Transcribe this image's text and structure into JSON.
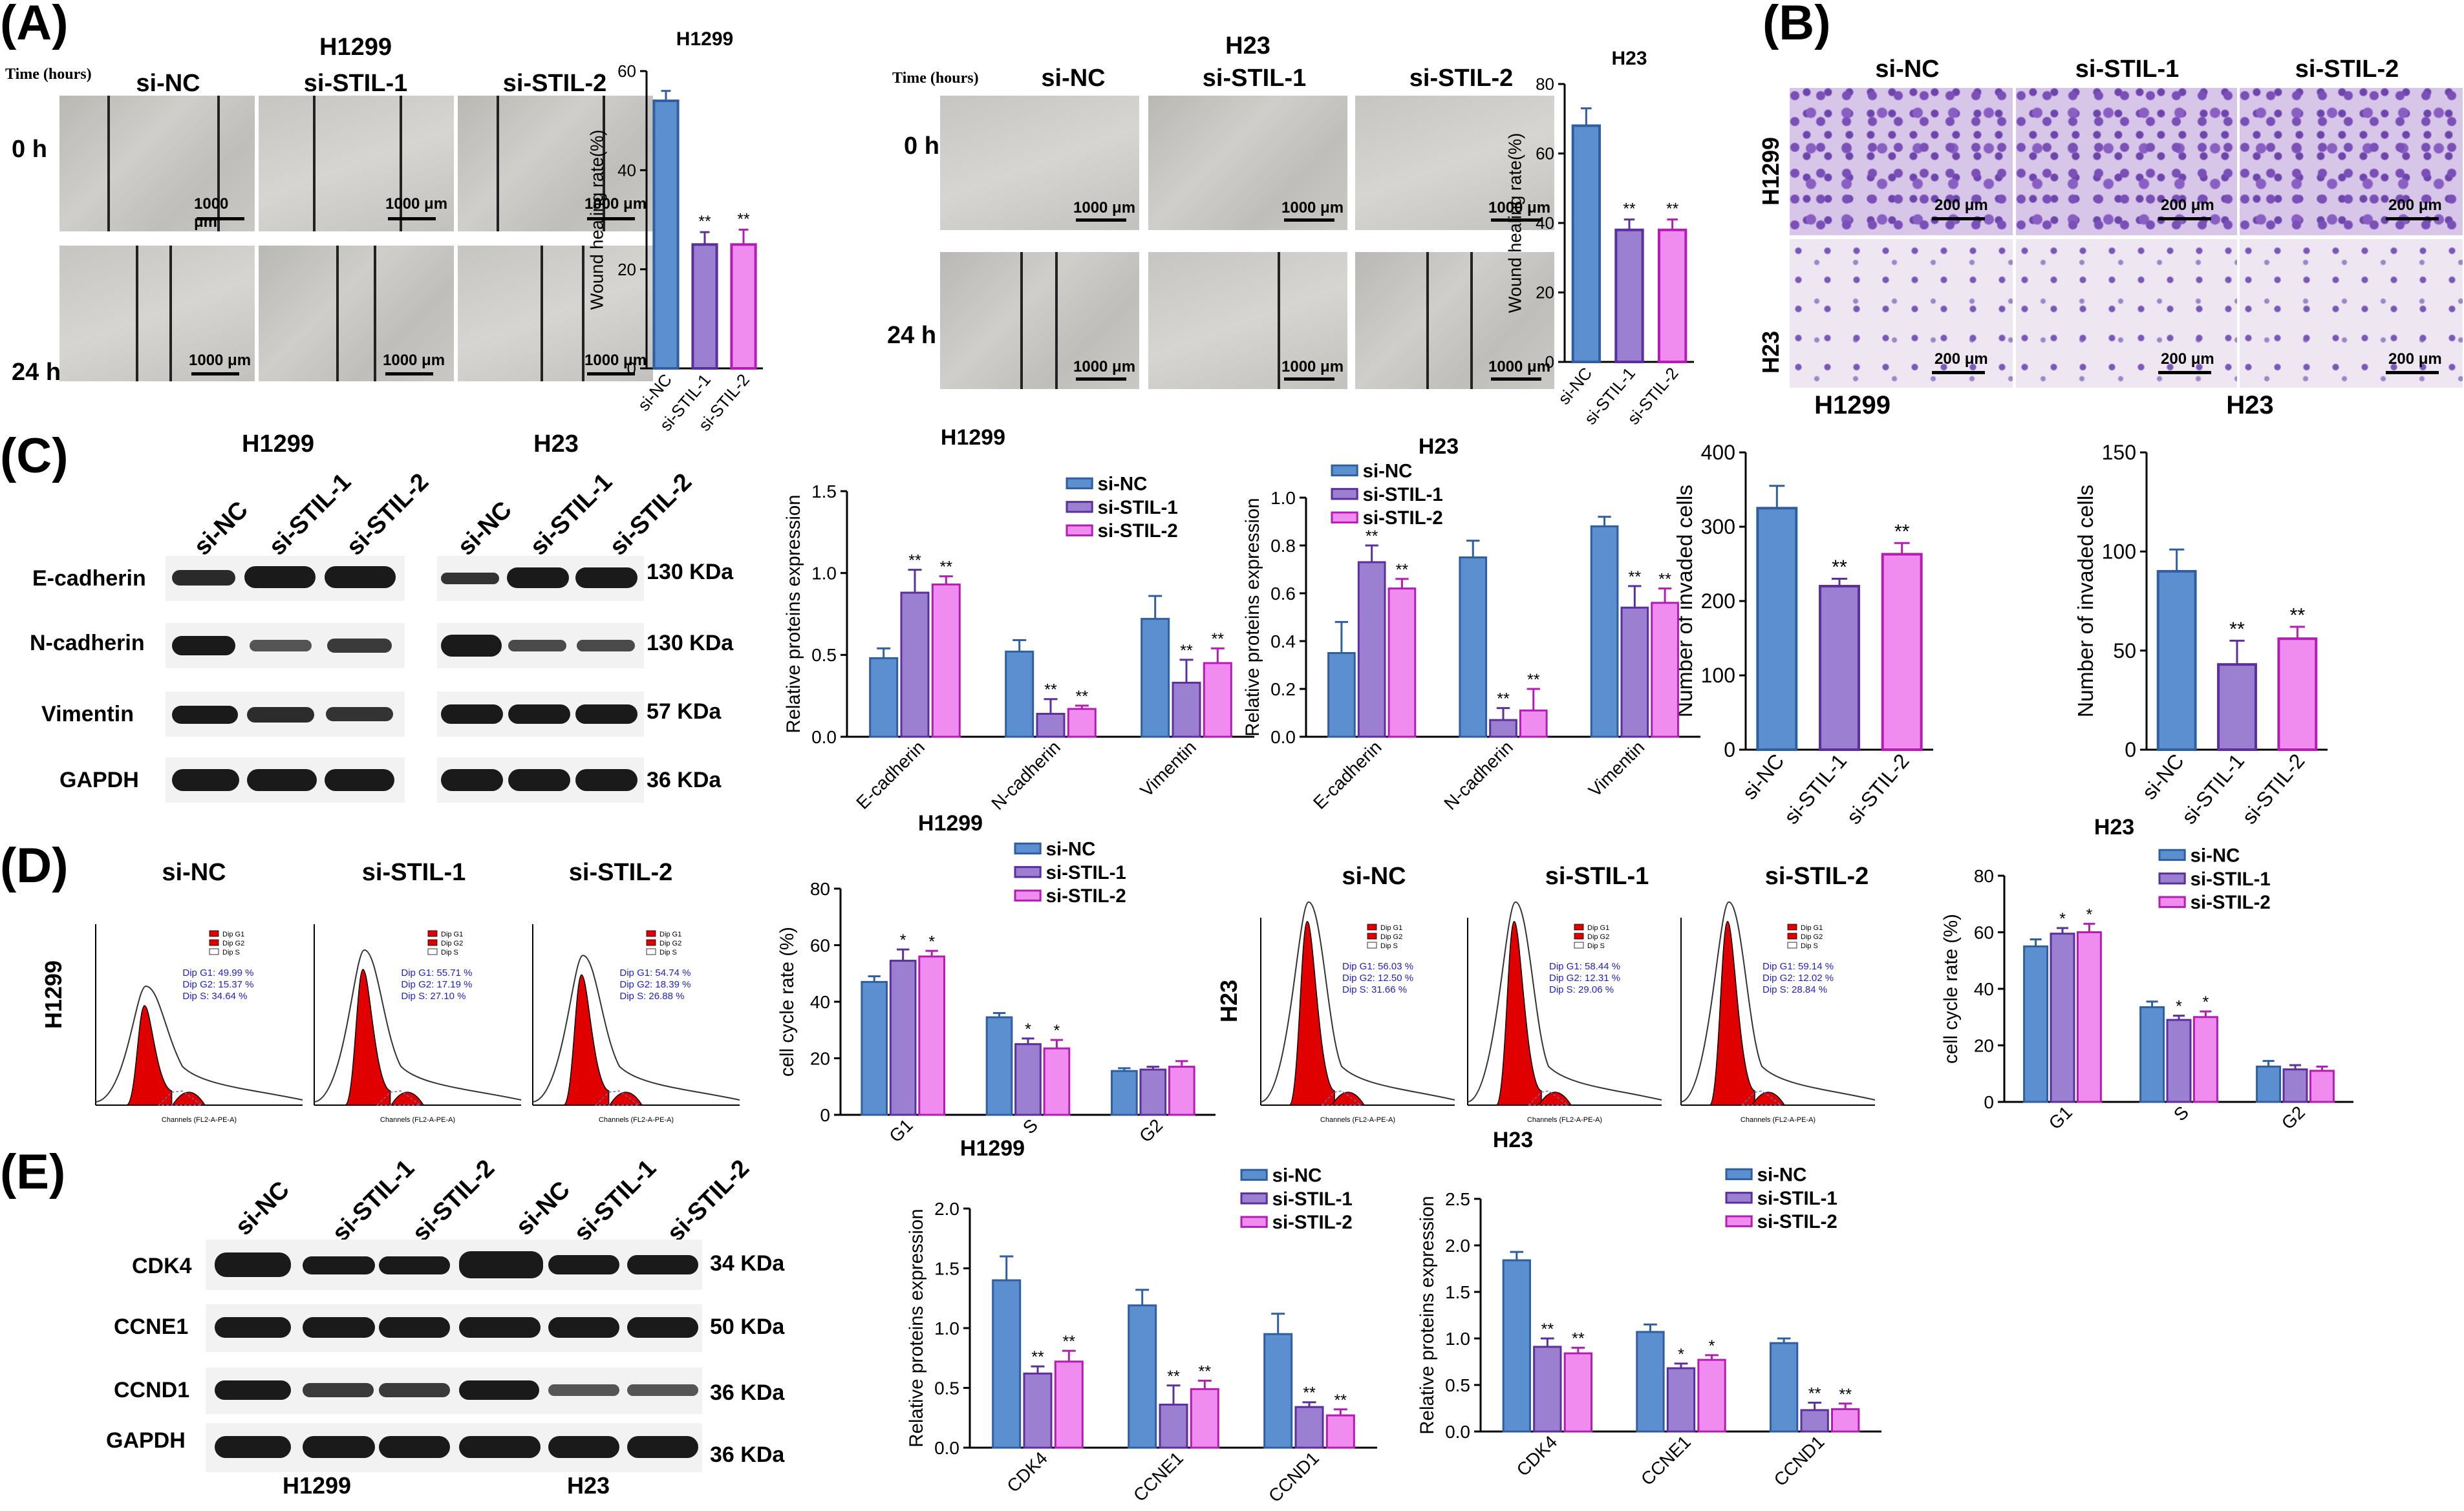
{
  "panels": {
    "A": "(A)",
    "B": "(B)",
    "C": "(C)",
    "D": "(D)",
    "E": "(E)"
  },
  "panel_a": {
    "time_label": "Time (hours)",
    "cell_h1299": "H1299",
    "cell_h23": "H23",
    "groups": [
      "si-NC",
      "si-STIL-1",
      "si-STIL-2"
    ],
    "times": [
      "0 h",
      "24 h"
    ],
    "scale_bar": "1000 μm"
  },
  "panel_b": {
    "groups": [
      "si-NC",
      "si-STIL-1",
      "si-STIL-2"
    ],
    "rows": [
      "H1299",
      "H23"
    ],
    "scale_bar": "200 μm"
  },
  "panel_c": {
    "blot_cells": [
      "H1299",
      "H23"
    ],
    "blot_groups": [
      "si-NC",
      "si-STIL-1",
      "si-STIL-2"
    ],
    "proteins": [
      "E-cadherin",
      "N-cadherin",
      "Vimentin",
      "GAPDH"
    ],
    "sizes": [
      "130 KDa",
      "130 KDa",
      "57 KDa",
      "36 KDa"
    ]
  },
  "panel_d": {
    "groups": [
      "si-NC",
      "si-STIL-1",
      "si-STIL-2"
    ],
    "cells": [
      "H1299",
      "H23"
    ],
    "legend": [
      "Dip G1",
      "Dip G2",
      "Dip S"
    ],
    "x_axis": "Channels (FL2-A-PE-A)",
    "stats_h1299": [
      [
        "Dip G1: 49.99 %",
        "Dip G2: 15.37 %",
        "Dip S: 34.64 %"
      ],
      [
        "Dip G1: 55.71 %",
        "Dip G2: 17.19 %",
        "Dip S: 27.10 %"
      ],
      [
        "Dip G1: 54.74 %",
        "Dip G2: 18.39 %",
        "Dip S: 26.88 %"
      ]
    ],
    "stats_h23": [
      [
        "Dip G1: 56.03 %",
        "Dip G2: 12.50 %",
        "Dip S: 31.66 %"
      ],
      [
        "Dip G1: 58.44 %",
        "Dip G2: 12.31 %",
        "Dip S: 29.06 %"
      ],
      [
        "Dip G1: 59.14 %",
        "Dip G2: 12.02 %",
        "Dip S: 28.84 %"
      ]
    ]
  },
  "panel_e": {
    "groups": [
      "si-NC",
      "si-STIL-1",
      "si-STIL-2",
      "si-NC",
      "si-STIL-1",
      "si-STIL-2"
    ],
    "proteins": [
      "CDK4",
      "CCNE1",
      "CCND1",
      "GAPDH"
    ],
    "sizes": [
      "34 KDa",
      "50 KDa",
      "36 KDa",
      "36 KDa"
    ],
    "cells": [
      "H1299",
      "H23"
    ]
  },
  "colors": {
    "si_nc": "#5b8fd0",
    "si_stil_1": "#9b7fd0",
    "si_stil_2": "#f08cf0",
    "si_nc_edge": "#2f5f9e",
    "si_stil_1_edge": "#5c2f9e",
    "si_stil_2_edge": "#b41cb4",
    "hist_fill": "#e00000",
    "dot_stain": "#7a4fb8"
  },
  "chart_data": [
    {
      "id": "wound_h1299",
      "type": "bar",
      "title": "H1299",
      "ylabel": "Wound healing rate(%)",
      "categories": [
        "si-NC",
        "si-STIL-1",
        "si-STIL-2"
      ],
      "values": [
        54,
        25,
        25
      ],
      "errors": [
        2,
        2.5,
        3
      ],
      "sig": [
        "",
        "**",
        "**"
      ],
      "ylim": [
        0,
        60
      ],
      "yticks": [
        0,
        20,
        40,
        60
      ]
    },
    {
      "id": "wound_h23",
      "type": "bar",
      "title": "H23",
      "ylabel": "Wound healing rate(%)",
      "categories": [
        "si-NC",
        "si-STIL-1",
        "si-STIL-2"
      ],
      "values": [
        68,
        38,
        38
      ],
      "errors": [
        5,
        3,
        3
      ],
      "sig": [
        "",
        "**",
        "**"
      ],
      "ylim": [
        0,
        80
      ],
      "yticks": [
        0,
        20,
        40,
        60,
        80
      ]
    },
    {
      "id": "invaded_h1299",
      "type": "bar",
      "title": "H1299",
      "ylabel": "Number of invaded cells",
      "categories": [
        "si-NC",
        "si-STIL-1",
        "si-STIL-2"
      ],
      "values": [
        325,
        220,
        263
      ],
      "errors": [
        30,
        10,
        15
      ],
      "sig": [
        "",
        "**",
        "**"
      ],
      "ylim": [
        0,
        400
      ],
      "yticks": [
        0,
        100,
        200,
        300,
        400
      ]
    },
    {
      "id": "invaded_h23",
      "type": "bar",
      "title": "H23",
      "ylabel": "Number of invaded cells",
      "categories": [
        "si-NC",
        "si-STIL-1",
        "si-STIL-2"
      ],
      "values": [
        90,
        43,
        56
      ],
      "errors": [
        11,
        12,
        6
      ],
      "sig": [
        "",
        "**",
        "**"
      ],
      "ylim": [
        0,
        150
      ],
      "yticks": [
        0,
        50,
        100,
        150
      ]
    },
    {
      "id": "emt_h1299",
      "type": "bar",
      "title": "H1299",
      "ylabel": "Relative proteins expression",
      "categories": [
        "E-cadherin",
        "N-cadherin",
        "Vimentin"
      ],
      "series": [
        {
          "name": "si-NC",
          "values": [
            0.48,
            0.52,
            0.72
          ],
          "errors": [
            0.06,
            0.07,
            0.14
          ],
          "sig": [
            "",
            "",
            ""
          ]
        },
        {
          "name": "si-STIL-1",
          "values": [
            0.88,
            0.14,
            0.33
          ],
          "errors": [
            0.14,
            0.09,
            0.14
          ],
          "sig": [
            "**",
            "**",
            "**"
          ]
        },
        {
          "name": "si-STIL-2",
          "values": [
            0.93,
            0.17,
            0.45
          ],
          "errors": [
            0.05,
            0.02,
            0.09
          ],
          "sig": [
            "**",
            "**",
            "**"
          ]
        }
      ],
      "ylim": [
        0,
        1.5
      ],
      "yticks": [
        "0.0",
        "0.5",
        "1.0",
        "1.5"
      ]
    },
    {
      "id": "emt_h23",
      "type": "bar",
      "title": "H23",
      "ylabel": "Relative proteins expression",
      "categories": [
        "E-cadherin",
        "N-cadherin",
        "Vimentin"
      ],
      "series": [
        {
          "name": "si-NC",
          "values": [
            0.35,
            0.75,
            0.88
          ],
          "errors": [
            0.13,
            0.07,
            0.04
          ],
          "sig": [
            "",
            "",
            ""
          ]
        },
        {
          "name": "si-STIL-1",
          "values": [
            0.73,
            0.07,
            0.54
          ],
          "errors": [
            0.07,
            0.05,
            0.09
          ],
          "sig": [
            "**",
            "**",
            "**"
          ]
        },
        {
          "name": "si-STIL-2",
          "values": [
            0.62,
            0.11,
            0.56
          ],
          "errors": [
            0.04,
            0.09,
            0.06
          ],
          "sig": [
            "**",
            "**",
            "**"
          ]
        }
      ],
      "ylim": [
        0,
        1.0
      ],
      "yticks": [
        "0.0",
        "0.2",
        "0.4",
        "0.6",
        "0.8",
        "1.0"
      ]
    },
    {
      "id": "cycle_h1299",
      "type": "bar",
      "title": "H1299",
      "ylabel": "cell cycle rate (%)",
      "categories": [
        "G1",
        "S",
        "G2"
      ],
      "series": [
        {
          "name": "si-NC",
          "values": [
            47,
            34.5,
            15.5
          ],
          "errors": [
            2,
            1.5,
            1
          ],
          "sig": [
            "",
            "",
            ""
          ]
        },
        {
          "name": "si-STIL-1",
          "values": [
            54.5,
            25,
            16
          ],
          "errors": [
            4,
            2,
            1
          ],
          "sig": [
            "*",
            "*",
            ""
          ]
        },
        {
          "name": "si-STIL-2",
          "values": [
            56,
            23.5,
            17
          ],
          "errors": [
            2,
            3,
            2
          ],
          "sig": [
            "*",
            "*",
            ""
          ]
        }
      ],
      "ylim": [
        0,
        80
      ],
      "yticks": [
        0,
        20,
        40,
        60,
        80
      ]
    },
    {
      "id": "cycle_h23",
      "type": "bar",
      "title": "H23",
      "ylabel": "cell cycle rate (%)",
      "categories": [
        "G1",
        "S",
        "G2"
      ],
      "series": [
        {
          "name": "si-NC",
          "values": [
            55,
            33.5,
            12.5
          ],
          "errors": [
            2.5,
            2,
            2
          ],
          "sig": [
            "",
            "",
            ""
          ]
        },
        {
          "name": "si-STIL-1",
          "values": [
            59.5,
            29,
            11.5
          ],
          "errors": [
            2,
            1.5,
            1.5
          ],
          "sig": [
            "*",
            "*",
            ""
          ]
        },
        {
          "name": "si-STIL-2",
          "values": [
            60,
            30,
            11
          ],
          "errors": [
            3,
            2,
            1.5
          ],
          "sig": [
            "*",
            "*",
            ""
          ]
        }
      ],
      "ylim": [
        0,
        80
      ],
      "yticks": [
        0,
        20,
        40,
        60,
        80
      ]
    },
    {
      "id": "cyclin_h1299",
      "type": "bar",
      "title": "H1299",
      "ylabel": "Relative proteins expression",
      "categories": [
        "CDK4",
        "CCNE1",
        "CCND1"
      ],
      "series": [
        {
          "name": "si-NC",
          "values": [
            1.4,
            1.19,
            0.95
          ],
          "errors": [
            0.2,
            0.13,
            0.17
          ],
          "sig": [
            "",
            "",
            ""
          ]
        },
        {
          "name": "si-STIL-1",
          "values": [
            0.62,
            0.36,
            0.34
          ],
          "errors": [
            0.06,
            0.16,
            0.04
          ],
          "sig": [
            "**",
            "**",
            "**"
          ]
        },
        {
          "name": "si-STIL-2",
          "values": [
            0.72,
            0.49,
            0.27
          ],
          "errors": [
            0.09,
            0.07,
            0.05
          ],
          "sig": [
            "**",
            "**",
            "**"
          ]
        }
      ],
      "ylim": [
        0,
        2.0
      ],
      "yticks": [
        "0.0",
        "0.5",
        "1.0",
        "1.5",
        "2.0"
      ]
    },
    {
      "id": "cyclin_h23",
      "type": "bar",
      "title": "H23",
      "ylabel": "Relative proteins expression",
      "categories": [
        "CDK4",
        "CCNE1",
        "CCND1"
      ],
      "series": [
        {
          "name": "si-NC",
          "values": [
            1.84,
            1.07,
            0.95
          ],
          "errors": [
            0.09,
            0.08,
            0.05
          ],
          "sig": [
            "",
            "",
            ""
          ]
        },
        {
          "name": "si-STIL-1",
          "values": [
            0.91,
            0.68,
            0.23
          ],
          "errors": [
            0.09,
            0.05,
            0.08
          ],
          "sig": [
            "**",
            "*",
            "**"
          ]
        },
        {
          "name": "si-STIL-2",
          "values": [
            0.84,
            0.77,
            0.24
          ],
          "errors": [
            0.06,
            0.05,
            0.06
          ],
          "sig": [
            "**",
            "*",
            "**"
          ]
        }
      ],
      "ylim": [
        0,
        2.5
      ],
      "yticks": [
        "0.0",
        "0.5",
        "1.0",
        "1.5",
        "2.0",
        "2.5"
      ]
    }
  ]
}
